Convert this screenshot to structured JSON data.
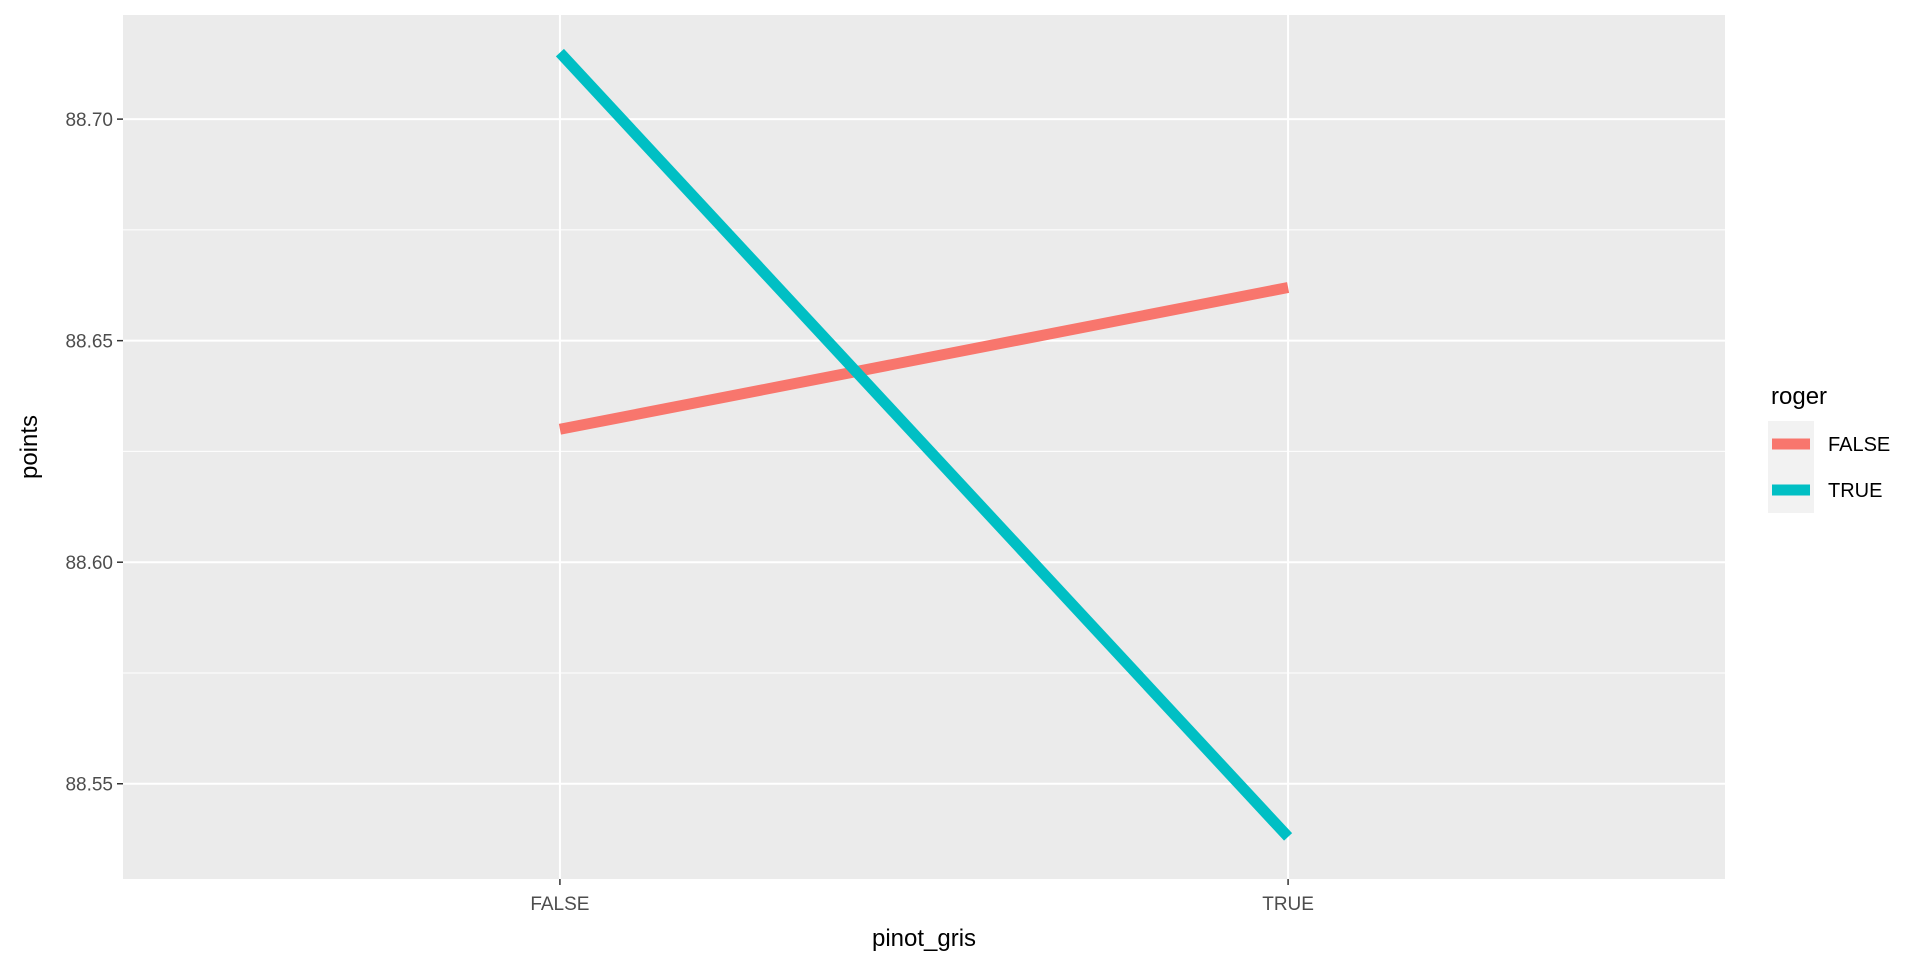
{
  "chart_data": {
    "type": "line",
    "xlabel": "pinot_gris",
    "ylabel": "points",
    "categories": [
      "FALSE",
      "TRUE"
    ],
    "y_ticks": [
      "88.55",
      "88.60",
      "88.65",
      "88.70"
    ],
    "y_tick_values": [
      88.55,
      88.6,
      88.65,
      88.7
    ],
    "ylim": [
      88.5285,
      88.7235
    ],
    "grid": true,
    "legend": {
      "title": "roger",
      "position": "right"
    },
    "series": [
      {
        "name": "FALSE",
        "color": "#F8766D",
        "values": [
          88.63,
          88.662
        ]
      },
      {
        "name": "TRUE",
        "color": "#00BFC4",
        "values": [
          88.715,
          88.538
        ]
      }
    ],
    "panel_background": "#EBEBEB",
    "grid_color": "#FFFFFF"
  }
}
